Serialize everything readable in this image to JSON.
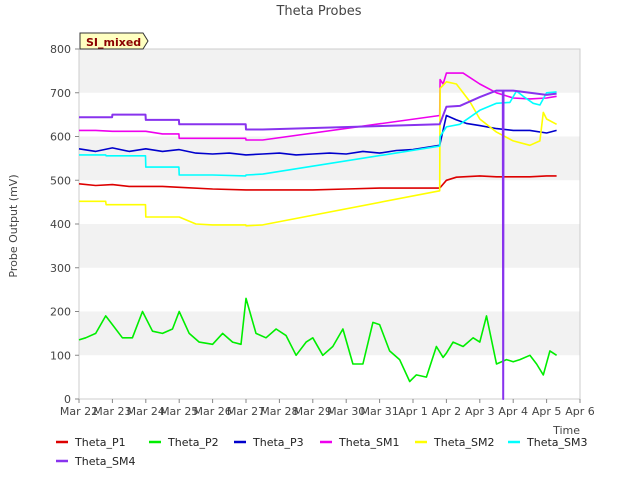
{
  "chart_data": {
    "type": "line",
    "title": "Theta Probes",
    "xlabel": "Time",
    "ylabel": "Probe Output (mV)",
    "ylim": [
      0,
      800
    ],
    "yticks": [
      0,
      100,
      200,
      300,
      400,
      500,
      600,
      700,
      800
    ],
    "xlim": [
      0,
      15
    ],
    "xticks": [
      0,
      1,
      2,
      3,
      4,
      5,
      6,
      7,
      8,
      9,
      10,
      11,
      12,
      13,
      14,
      15
    ],
    "xtick_labels": [
      "Mar 22",
      "Mar 23",
      "Mar 24",
      "Mar 25",
      "Mar 26",
      "Mar 27",
      "Mar 28",
      "Mar 29",
      "Mar 30",
      "Mar 31",
      "Apr 1",
      "Apr 2",
      "Apr 3",
      "Apr 4",
      "Apr 5",
      "Apr 6"
    ],
    "grid": "horizontal bands",
    "legend_position": "bottom",
    "annotation": "SI_mixed",
    "colors": {
      "band": "#f2f2f2",
      "annotation_bg": "#ffffc0",
      "annotation_text": "#8b0000"
    },
    "series": [
      {
        "name": "Theta_P1",
        "color": "#dd0000",
        "x": [
          0,
          0.5,
          1,
          1.5,
          2,
          2.5,
          3,
          4,
          5,
          6,
          7,
          8,
          9,
          10,
          10.8,
          11,
          11.3,
          12,
          12.5,
          13,
          13.5,
          14,
          14.3
        ],
        "y": [
          492,
          488,
          490,
          486,
          486,
          486,
          484,
          480,
          478,
          478,
          478,
          480,
          482,
          482,
          482,
          500,
          507,
          510,
          508,
          508,
          508,
          510,
          510
        ]
      },
      {
        "name": "Theta_P2",
        "color": "#00ee00",
        "x": [
          0,
          0.2,
          0.5,
          0.8,
          1,
          1.3,
          1.6,
          1.9,
          2.2,
          2.5,
          2.8,
          3,
          3.3,
          3.6,
          4,
          4.3,
          4.6,
          4.85,
          5,
          5.3,
          5.6,
          5.9,
          6.2,
          6.5,
          6.8,
          7,
          7.3,
          7.6,
          7.9,
          8.2,
          8.5,
          8.8,
          9,
          9.3,
          9.6,
          9.9,
          10.1,
          10.4,
          10.7,
          10.9,
          11,
          11.2,
          11.5,
          11.8,
          12,
          12.2,
          12.5,
          12.8,
          13,
          13.2,
          13.5,
          13.7,
          13.9,
          14.1,
          14.3
        ],
        "y": [
          135,
          140,
          150,
          190,
          170,
          140,
          140,
          200,
          155,
          150,
          160,
          200,
          150,
          130,
          125,
          150,
          130,
          125,
          230,
          150,
          140,
          160,
          145,
          100,
          130,
          140,
          100,
          120,
          160,
          80,
          80,
          175,
          170,
          110,
          90,
          40,
          55,
          50,
          120,
          95,
          105,
          130,
          120,
          140,
          130,
          190,
          80,
          90,
          85,
          90,
          100,
          80,
          55,
          110,
          100
        ]
      },
      {
        "name": "Theta_P3",
        "color": "#0000cc",
        "x": [
          0,
          0.5,
          1,
          1.5,
          2,
          2.5,
          3,
          3.5,
          4,
          4.5,
          5,
          5.5,
          6,
          6.5,
          7,
          7.5,
          8,
          8.5,
          9,
          9.5,
          10,
          10.8,
          11,
          11.3,
          11.6,
          12,
          12.5,
          13,
          13.5,
          14,
          14.3
        ],
        "y": [
          572,
          566,
          574,
          566,
          572,
          566,
          570,
          562,
          560,
          562,
          558,
          560,
          562,
          558,
          560,
          562,
          560,
          566,
          562,
          568,
          570,
          580,
          648,
          638,
          630,
          625,
          618,
          614,
          614,
          608,
          614
        ]
      },
      {
        "name": "Theta_SM1",
        "color": "#ee00ee",
        "x": [
          0,
          0.5,
          1,
          1.5,
          2,
          2.5,
          2.99,
          3,
          4,
          4.99,
          5,
          5.5,
          10.8,
          10.81,
          10.9,
          11,
          11.5,
          12,
          12.5,
          13,
          13.5,
          14,
          14.3
        ],
        "y": [
          614,
          614,
          612,
          612,
          612,
          606,
          606,
          596,
          596,
          596,
          592,
          592,
          648,
          730,
          720,
          745,
          745,
          720,
          700,
          688,
          686,
          688,
          692
        ]
      },
      {
        "name": "Theta_SM2",
        "color": "#ffff00",
        "x": [
          0,
          0.8,
          0.81,
          1,
          1.99,
          2,
          3,
          3.5,
          4,
          4.99,
          5,
          5.5,
          10.8,
          10.81,
          11,
          11.3,
          11.7,
          12,
          12.5,
          13,
          13.5,
          13.8,
          13.9,
          14,
          14.3
        ],
        "y": [
          452,
          452,
          444,
          444,
          444,
          416,
          416,
          400,
          398,
          398,
          396,
          398,
          476,
          710,
          725,
          720,
          680,
          640,
          610,
          590,
          580,
          590,
          655,
          640,
          628
        ]
      },
      {
        "name": "Theta_SM3",
        "color": "#00ffff",
        "x": [
          0,
          0.8,
          0.81,
          1.99,
          2,
          2.99,
          3,
          4,
          4.99,
          5,
          5.5,
          10.8,
          10.81,
          11,
          11.4,
          12,
          12.5,
          12.9,
          13.1,
          13.3,
          13.6,
          13.8,
          14,
          14.3
        ],
        "y": [
          558,
          558,
          556,
          556,
          530,
          530,
          512,
          512,
          510,
          512,
          514,
          578,
          600,
          622,
          628,
          660,
          676,
          678,
          704,
          692,
          676,
          672,
          700,
          702
        ]
      },
      {
        "name": "Theta_SM4",
        "color": "#8833ee",
        "x": [
          0,
          0.5,
          0.99,
          1,
          1.99,
          2,
          2.99,
          3,
          4,
          4.99,
          5,
          5.5,
          10.8,
          11,
          11.4,
          12,
          12.5,
          12.69,
          12.7,
          12.71,
          13,
          13.5,
          14,
          14.3
        ],
        "y": [
          644,
          644,
          644,
          650,
          650,
          638,
          638,
          628,
          628,
          628,
          616,
          616,
          628,
          668,
          670,
          690,
          705,
          705,
          0,
          705,
          705,
          700,
          695,
          698
        ]
      }
    ]
  }
}
